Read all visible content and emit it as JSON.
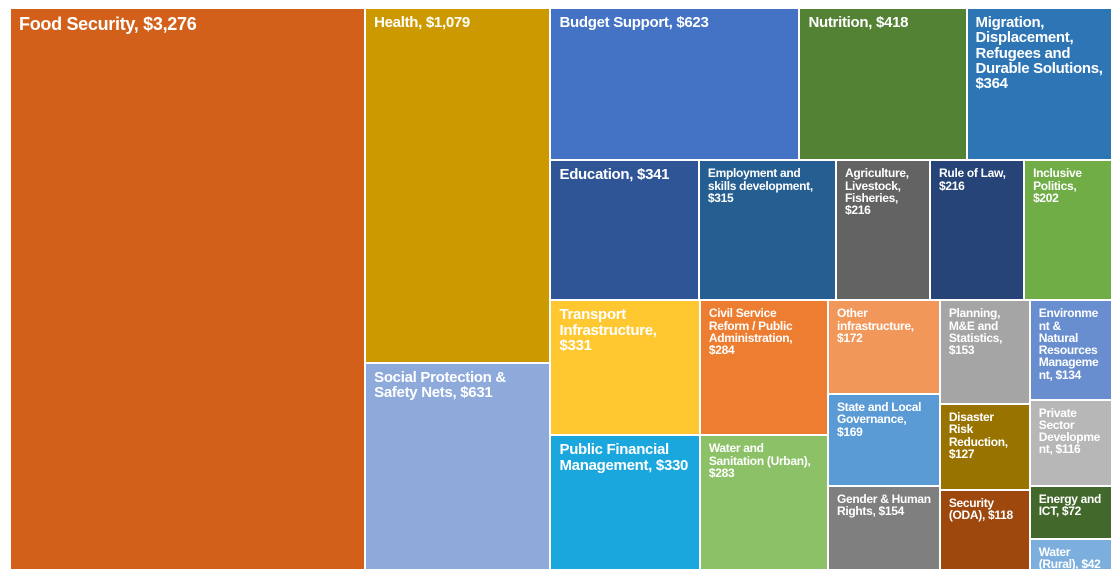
{
  "chart_data": {
    "type": "treemap",
    "labels": [
      "Food Security, $3,276",
      "Health, $1,079",
      "Social Protection & Safety Nets, $631",
      "Budget Support, $623",
      "Nutrition, $418",
      "Migration, Displacement, Refugees and Durable Solutions, $364",
      "Education, $341",
      "Employment and skills development, $315",
      "Agriculture, Livestock, Fisheries, $216",
      "Rule of Law, $216",
      "Inclusive Politics, $202",
      "Transport Infrastructure, $331",
      "Civil Service Reform / Public Administration, $284",
      "Other infrastructure, $172",
      "Planning, M&E and Statistics, $153",
      "Environment & Natural Resources Management, $134",
      "Public Financial Management, $330",
      "Water and Sanitation (Urban), $283",
      "State and Local Governance, $169",
      "Disaster Risk Reduction, $127",
      "Private Sector Development, $116",
      "Gender & Human Rights, $154",
      "Security (ODA), $118",
      "Energy and ICT, $72",
      "Water (Rural), $42"
    ],
    "values": [
      3276,
      1079,
      631,
      623,
      418,
      364,
      341,
      315,
      216,
      216,
      202,
      331,
      284,
      172,
      153,
      134,
      330,
      283,
      169,
      127,
      116,
      154,
      118,
      72,
      42
    ],
    "colors": [
      "#d2601a",
      "#cc9a00",
      "#8eaadb",
      "#4472c4",
      "#548235",
      "#2e75b6",
      "#2f5597",
      "#255e91",
      "#636363",
      "#264478",
      "#70ad47",
      "#ffc830",
      "#ed7d31",
      "#f1975a",
      "#a5a5a5",
      "#698ed0",
      "#1aa7dd",
      "#8cc168",
      "#5b9bd5",
      "#997300",
      "#b7b7b7",
      "#7f7f7f",
      "#9e480e",
      "#43682b",
      "#7cafdd"
    ]
  }
}
